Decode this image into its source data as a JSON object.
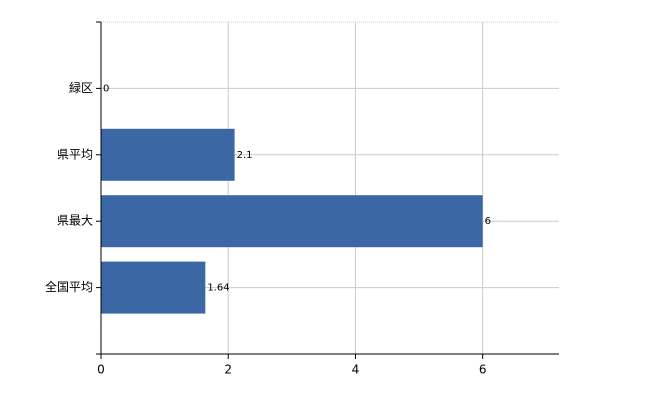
{
  "chart_data": {
    "type": "barh",
    "categories": [
      "緑区",
      "県平均",
      "県最大",
      "全国平均"
    ],
    "values": [
      0,
      2.1,
      6,
      1.64
    ],
    "color": "#3b68a5",
    "xlim": [
      0,
      7.2
    ],
    "xticks": [
      0,
      2,
      4,
      6
    ],
    "grid": true
  }
}
